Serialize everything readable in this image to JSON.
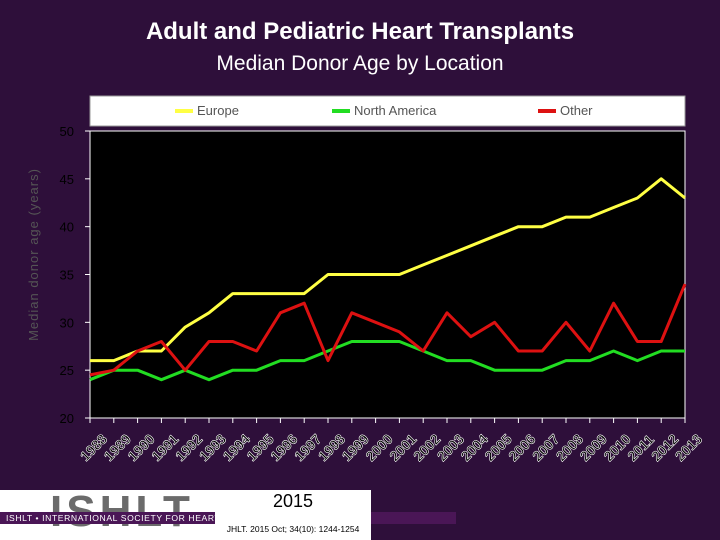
{
  "title": "Adult and Pediatric Heart Transplants",
  "subtitle": "Median Donor Age by Location",
  "chart_data": {
    "type": "line",
    "ylabel": "Median donor age (years)",
    "xlabel": "",
    "ylim": [
      20,
      50
    ],
    "yticks": [
      20,
      25,
      30,
      35,
      40,
      45,
      50
    ],
    "grid": false,
    "legend_position": "top",
    "categories": [
      "1988",
      "1989",
      "1990",
      "1991",
      "1992",
      "1993",
      "1994",
      "1995",
      "1996",
      "1997",
      "1998",
      "1999",
      "2000",
      "2001",
      "2002",
      "2003",
      "2004",
      "2005",
      "2006",
      "2007",
      "2008",
      "2009",
      "2010",
      "2011",
      "2012",
      "2013"
    ],
    "series": [
      {
        "name": "Europe",
        "color": "#ffff44",
        "values": [
          26,
          26,
          27,
          27,
          29.5,
          31,
          33,
          33,
          33,
          33,
          35,
          35,
          35,
          35,
          36,
          37,
          38,
          39,
          40,
          40,
          41,
          41,
          42,
          43,
          45,
          43
        ]
      },
      {
        "name": "North America",
        "color": "#22dd22",
        "values": [
          24,
          25,
          25,
          24,
          25,
          24,
          25,
          25,
          26,
          26,
          27,
          28,
          28,
          28,
          27,
          26,
          26,
          25,
          25,
          25,
          26,
          26,
          27,
          26,
          27,
          27
        ]
      },
      {
        "name": "Other",
        "color": "#dd1111",
        "values": [
          24.5,
          25,
          27,
          28,
          25,
          28,
          28,
          27,
          31,
          32,
          26,
          31,
          30,
          29,
          27,
          31,
          28.5,
          30,
          27,
          27,
          30,
          27,
          32,
          28,
          28,
          34
        ]
      }
    ]
  },
  "footer": {
    "logo_word": "ISHLT",
    "org_name": "ISHLT • INTERNATIONAL SOCIETY FOR HEART AND LUNG TRANSPLANTATION",
    "year": "2015",
    "citation": "JHLT. 2015 Oct; 34(10): 1244-1254"
  }
}
